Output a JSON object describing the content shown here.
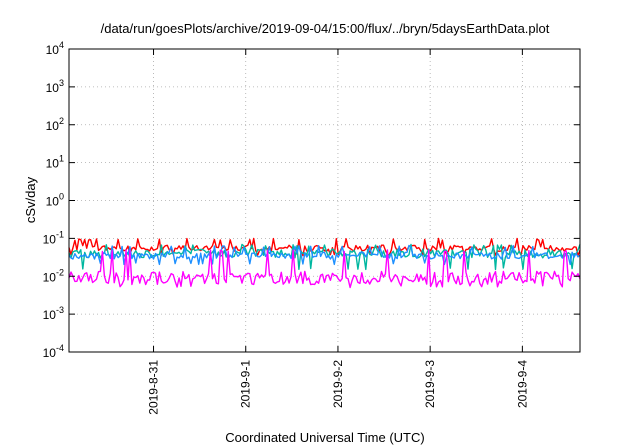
{
  "chart_data": {
    "type": "line",
    "title": "/data/run/goesPlots/archive/2019-09-04/15:00/flux/../bryn/5daysEarthData.plot",
    "xlabel": "Coordinated Universal Time (UTC)",
    "ylabel": "cSv/day",
    "yscale": "log",
    "ylim": [
      0.0001,
      10000
    ],
    "y_ticks": [
      {
        "base": "10",
        "exp": "-4"
      },
      {
        "base": "10",
        "exp": "-3"
      },
      {
        "base": "10",
        "exp": "-2"
      },
      {
        "base": "10",
        "exp": "-1"
      },
      {
        "base": "10",
        "exp": "0"
      },
      {
        "base": "10",
        "exp": "1"
      },
      {
        "base": "10",
        "exp": "2"
      },
      {
        "base": "10",
        "exp": "3"
      },
      {
        "base": "10",
        "exp": "4"
      }
    ],
    "xlim": [
      "2019-08-30T02:00",
      "2019-09-04T15:00"
    ],
    "x_ticks": [
      {
        "label": "2019-8-31",
        "time": "2019-08-31T00:00"
      },
      {
        "label": "2019-9-1",
        "time": "2019-09-01T00:00"
      },
      {
        "label": "2019-9-2",
        "time": "2019-09-02T00:00"
      },
      {
        "label": "2019-9-3",
        "time": "2019-09-03T00:00"
      },
      {
        "label": "2019-9-4",
        "time": "2019-09-04T00:00"
      }
    ],
    "grid": true,
    "series": [
      {
        "color": "#ff0000",
        "typical": 0.055,
        "low": 0.035,
        "high": 0.1
      },
      {
        "color": "#00b7a0",
        "typical": 0.04,
        "low": 0.015,
        "high": 0.07
      },
      {
        "color": "#1e90ff",
        "typical": 0.035,
        "low": 0.02,
        "high": 0.065
      },
      {
        "color": "#ff00ff",
        "typical": 0.009,
        "low": 0.005,
        "high": 0.05
      }
    ]
  }
}
